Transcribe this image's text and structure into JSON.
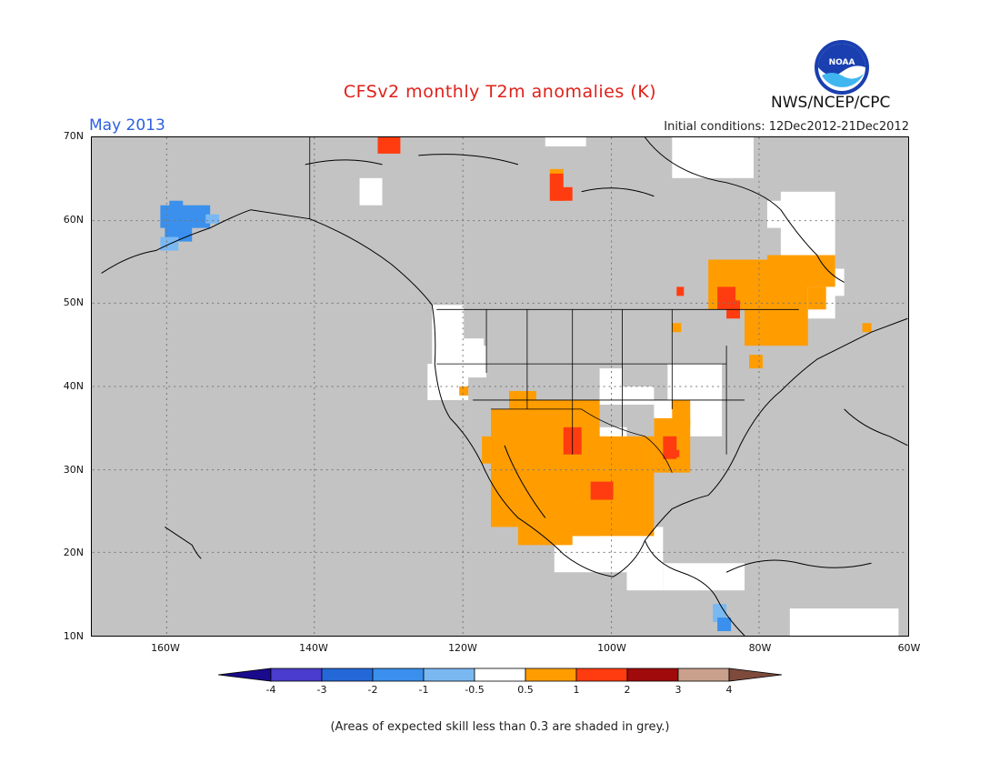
{
  "title": "CFSv2 monthly T2m anomalies (K)",
  "month_label": "May 2013",
  "initial_conditions": "Initial conditions: 12Dec2012-21Dec2012",
  "agency": "NWS/NCEP/CPC",
  "logo_text": "NOAA",
  "note": "(Areas of expected skill less than 0.3 are shaded in grey.)",
  "latitude_labels": [
    "70N",
    "60N",
    "50N",
    "40N",
    "30N",
    "20N",
    "10N"
  ],
  "longitude_labels": [
    "160W",
    "140W",
    "120W",
    "100W",
    "80W",
    "60W"
  ],
  "colorbar": {
    "tick_labels": [
      "-4",
      "-3",
      "-2",
      "-1",
      "-0.5",
      "0.5",
      "1",
      "2",
      "3",
      "4"
    ],
    "colors": [
      "#1a0a8c",
      "#4a3ccc",
      "#2468d8",
      "#3a90ec",
      "#7ab8f2",
      "#ffffff",
      "#ff9d00",
      "#ff3c10",
      "#a00a0a",
      "#c8a08c",
      "#7d4a3c"
    ]
  },
  "legend_colors": {
    "low_skill_grey": "#c3c3c3",
    "neutral": "#ffffff",
    "anom_0p5_1": "#ff9d00",
    "anom_1_2": "#ff3c10",
    "anom_m1_m0p5": "#7ab8f2",
    "anom_m2_m1": "#3a90ec"
  },
  "map_extent": {
    "lon_min": -170,
    "lon_max": -60,
    "lat_min": 10,
    "lat_max": 70
  }
}
